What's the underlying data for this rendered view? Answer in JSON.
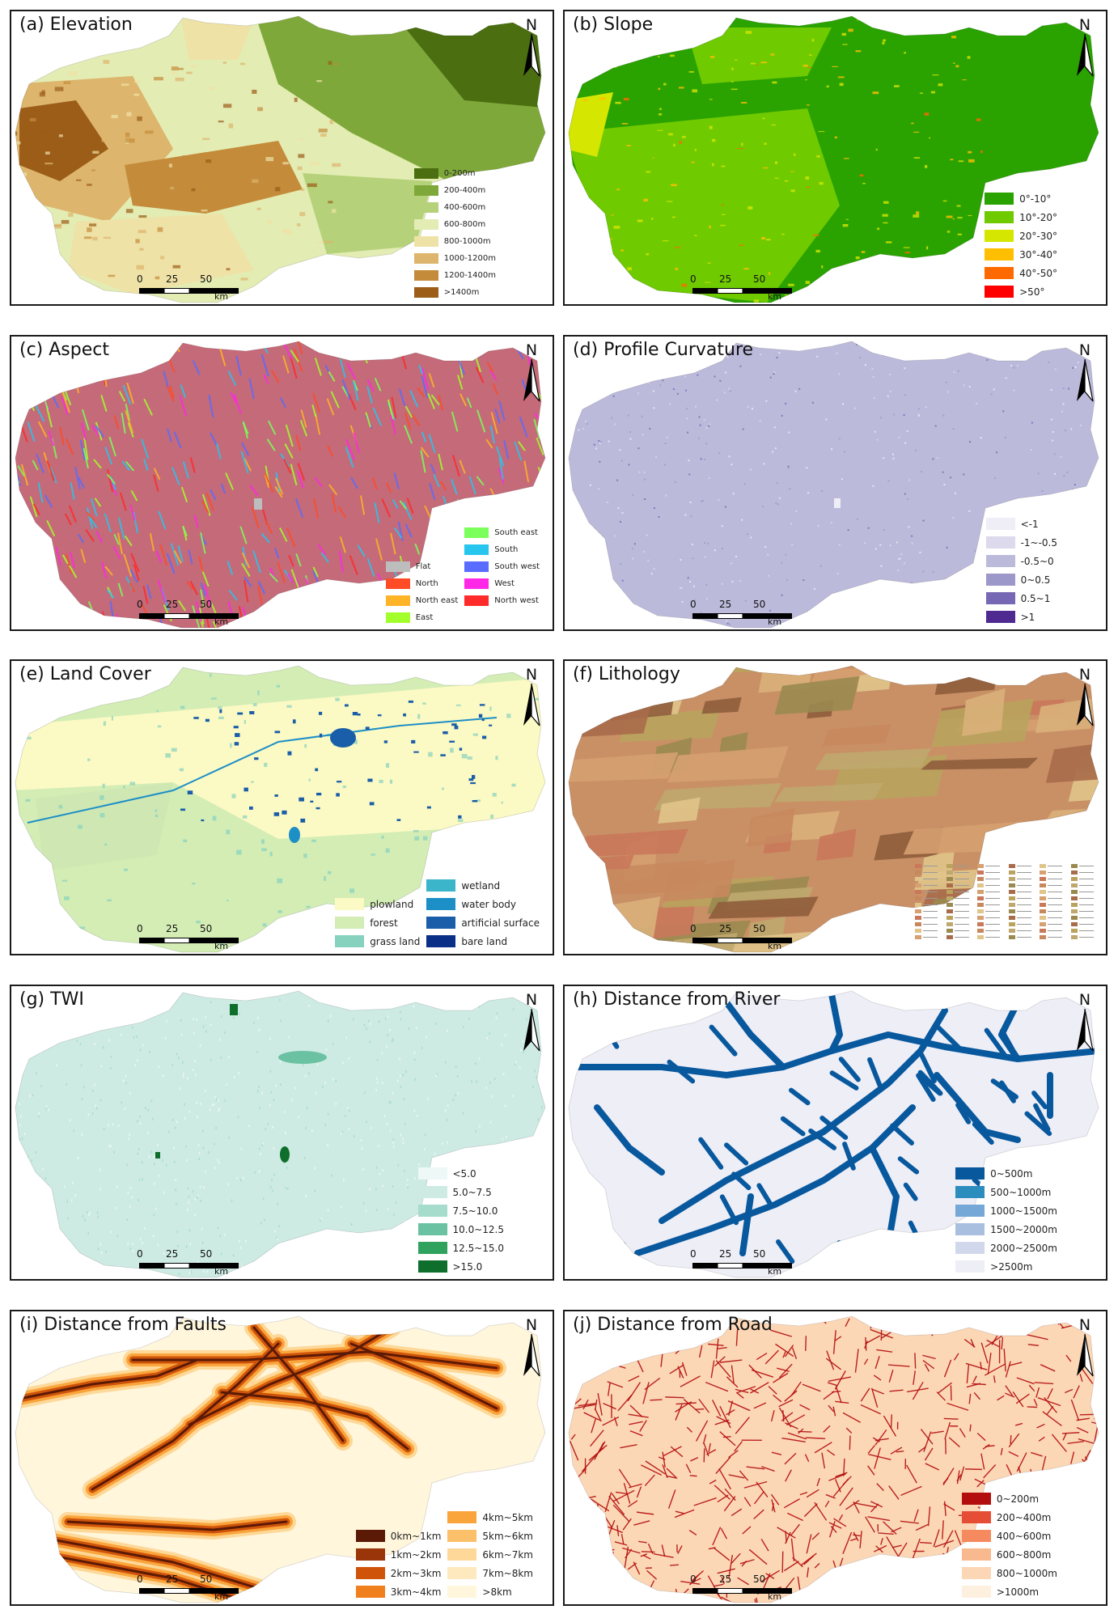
{
  "panels": [
    {
      "id": "a",
      "title": "(a) Elevation",
      "theme": "elevation",
      "legend": [
        {
          "label": "0-200m",
          "color": "#4a6e10"
        },
        {
          "label": "200-400m",
          "color": "#7fa83a"
        },
        {
          "label": "400-600m",
          "color": "#b5d27a"
        },
        {
          "label": "600-800m",
          "color": "#e3ecb3"
        },
        {
          "label": "800-1000m",
          "color": "#efe2a6"
        },
        {
          "label": "1000-1200m",
          "color": "#ddb56c"
        },
        {
          "label": "1200-1400m",
          "color": "#c48b3b"
        },
        {
          "label": ">1400m",
          "color": "#9b5d18"
        }
      ]
    },
    {
      "id": "b",
      "title": "(b) Slope",
      "theme": "slope",
      "legend": [
        {
          "label": "0°-10°",
          "color": "#2aa200"
        },
        {
          "label": "10°-20°",
          "color": "#6fca00"
        },
        {
          "label": "20°-30°",
          "color": "#d5e600"
        },
        {
          "label": "30°-40°",
          "color": "#ffbf00"
        },
        {
          "label": "40°-50°",
          "color": "#ff6a00"
        },
        {
          "label": ">50°",
          "color": "#ff0000"
        }
      ]
    },
    {
      "id": "c",
      "title": "(c) Aspect",
      "theme": "aspect",
      "legend": [
        {
          "label": "Flat",
          "color": "#bdbdbd"
        },
        {
          "label": "North",
          "color": "#ff4b26"
        },
        {
          "label": "North east",
          "color": "#ffb326"
        },
        {
          "label": "East",
          "color": "#a3ff2b"
        },
        {
          "label": "South east",
          "color": "#7bff5a"
        },
        {
          "label": "South",
          "color": "#27c6ef"
        },
        {
          "label": "South west",
          "color": "#5a6bff"
        },
        {
          "label": "West",
          "color": "#ff28e6"
        },
        {
          "label": "North west",
          "color": "#ff2a2a"
        }
      ]
    },
    {
      "id": "d",
      "title": "(d) Profile Curvature",
      "theme": "curvature",
      "legend": [
        {
          "label": "<-1",
          "color": "#efedf6"
        },
        {
          "label": "-1~-0.5",
          "color": "#dcdaec"
        },
        {
          "label": "-0.5~0",
          "color": "#bcbadb"
        },
        {
          "label": "0~0.5",
          "color": "#9c98c9"
        },
        {
          "label": "0.5~1",
          "color": "#7668b4"
        },
        {
          "label": ">1",
          "color": "#4f2a91"
        }
      ]
    },
    {
      "id": "e",
      "title": "(e) Land Cover",
      "theme": "landcover",
      "legend": [
        {
          "label": "plowland",
          "color": "#fbf9c4"
        },
        {
          "label": "forest",
          "color": "#d3edb5"
        },
        {
          "label": "grass land",
          "color": "#86d2bf"
        },
        {
          "label": "wetland",
          "color": "#3ab5c9"
        },
        {
          "label": "water body",
          "color": "#1d8fc7"
        },
        {
          "label": "artificial surface",
          "color": "#1a5da8"
        },
        {
          "label": "bare land",
          "color": "#0a2f86"
        }
      ]
    },
    {
      "id": "f",
      "title": "(f) Lithology",
      "theme": "lithology",
      "legend": []
    },
    {
      "id": "g",
      "title": "(g) TWI",
      "theme": "twi",
      "legend": [
        {
          "label": "<5.0",
          "color": "#eef8f6"
        },
        {
          "label": "5.0~7.5",
          "color": "#cdebe3"
        },
        {
          "label": "7.5~10.0",
          "color": "#a6dccc"
        },
        {
          "label": "10.0~12.5",
          "color": "#6bc2a3"
        },
        {
          "label": "12.5~15.0",
          "color": "#2fa35d"
        },
        {
          "label": ">15.0",
          "color": "#0e6e2c"
        }
      ]
    },
    {
      "id": "h",
      "title": "(h) Distance from River",
      "theme": "river",
      "legend": [
        {
          "label": "0~500m",
          "color": "#08589e"
        },
        {
          "label": "500~1000m",
          "color": "#2b8cbe"
        },
        {
          "label": "1000~1500m",
          "color": "#75a8d6"
        },
        {
          "label": "1500~2000m",
          "color": "#a9bfe0"
        },
        {
          "label": "2000~2500m",
          "color": "#d2d8ec"
        },
        {
          "label": ">2500m",
          "color": "#eeeef7"
        }
      ]
    },
    {
      "id": "i",
      "title": "(i) Distance from Faults",
      "theme": "faults",
      "legend": [
        {
          "label": "0km~1km",
          "color": "#5a1a06"
        },
        {
          "label": "1km~2km",
          "color": "#9a3409"
        },
        {
          "label": "2km~3km",
          "color": "#cf540a"
        },
        {
          "label": "3km~4km",
          "color": "#f0801e"
        },
        {
          "label": "4km~5km",
          "color": "#faa53c"
        },
        {
          "label": "5km~6km",
          "color": "#fcc06a"
        },
        {
          "label": "6km~7km",
          "color": "#fdd898"
        },
        {
          "label": "7km~8km",
          "color": "#fde9bd"
        },
        {
          "label": ">8km",
          "color": "#fff6dc"
        }
      ]
    },
    {
      "id": "j",
      "title": "(j) Distance from Road",
      "theme": "road",
      "legend": [
        {
          "label": "0~200m",
          "color": "#b30d0d"
        },
        {
          "label": "200~400m",
          "color": "#e64d35"
        },
        {
          "label": "400~600m",
          "color": "#f48a5d"
        },
        {
          "label": "600~800m",
          "color": "#f9b98e"
        },
        {
          "label": "800~1000m",
          "color": "#fcd7b6"
        },
        {
          "label": ">1000m",
          "color": "#fef0df"
        }
      ]
    }
  ],
  "scale": {
    "ticks": [
      "0",
      "25",
      "50"
    ],
    "unit": "km"
  },
  "north_label": "N"
}
